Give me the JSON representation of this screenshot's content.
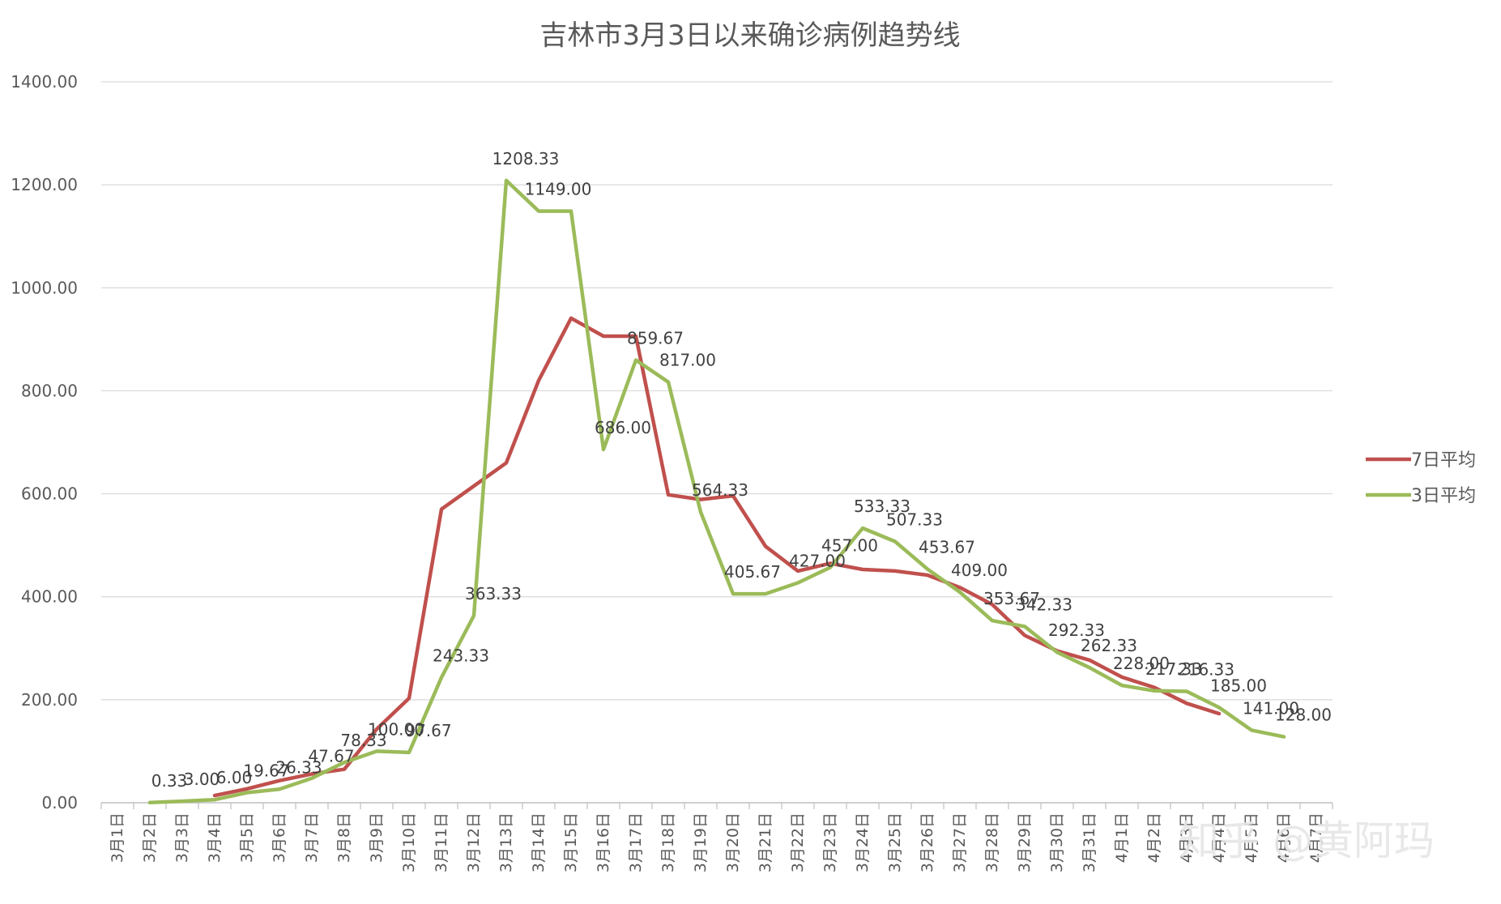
{
  "chart_data": {
    "type": "line",
    "title": "吉林市3月3日以来确诊病例趋势线",
    "xlabel": "",
    "ylabel": "",
    "ylim": [
      0,
      1400
    ],
    "yticks": [
      "0.00",
      "200.00",
      "400.00",
      "600.00",
      "800.00",
      "1000.00",
      "1200.00",
      "1400.00"
    ],
    "grid": true,
    "legend_position": "right",
    "categories": [
      "3月1日",
      "3月2日",
      "3月3日",
      "3月4日",
      "3月5日",
      "3月6日",
      "3月7日",
      "3月8日",
      "3月9日",
      "3月10日",
      "3月11日",
      "3月12日",
      "3月13日",
      "3月14日",
      "3月15日",
      "3月16日",
      "3月17日",
      "3月18日",
      "3月19日",
      "3月20日",
      "3月21日",
      "3月22日",
      "3月23日",
      "3月24日",
      "3月25日",
      "3月26日",
      "3月27日",
      "3月28日",
      "3月29日",
      "3月30日",
      "3月31日",
      "4月1日",
      "4月2日",
      "4月3日",
      "4月4日",
      "4月5日",
      "4月6日",
      "4月7日"
    ],
    "series": [
      {
        "name": "7日平均",
        "color": "#c0504d",
        "values": [
          null,
          null,
          null,
          14,
          27,
          43,
          56,
          65,
          143,
          203,
          570,
          615,
          660,
          820,
          941,
          906,
          906,
          598,
          589,
          596,
          498,
          450,
          465,
          453,
          450,
          442,
          418,
          385,
          325,
          295,
          277,
          244,
          224,
          193,
          173,
          null,
          null,
          null
        ],
        "labels": []
      },
      {
        "name": "3日平均",
        "color": "#9bbb59",
        "values": [
          null,
          0.33,
          3.0,
          6.0,
          19.67,
          26.33,
          47.67,
          78.33,
          100.0,
          97.67,
          243.33,
          363.33,
          1208.33,
          1149.0,
          1149.0,
          686.0,
          859.67,
          817.0,
          564.33,
          405.67,
          405.67,
          427.0,
          457.0,
          533.33,
          507.33,
          453.67,
          409.0,
          353.67,
          342.33,
          292.33,
          262.33,
          228.0,
          217.33,
          216.33,
          185.0,
          141.0,
          128.0,
          null
        ],
        "labels": [
          null,
          "0.33",
          "3.00",
          "6.00",
          "19.67",
          "26.33",
          "47.67",
          "78.33",
          "100.00",
          "97.67",
          "243.33",
          "363.33",
          "1208.33",
          "1149.00",
          null,
          "686.00",
          "859.67",
          "817.00",
          "564.33",
          "405.67",
          null,
          "427.00",
          "457.00",
          "533.33",
          "507.33",
          "453.67",
          "409.00",
          "353.67",
          "342.33",
          "292.33",
          "262.33",
          "228.00",
          "217.33",
          "216.33",
          "185.00",
          "141.00",
          "128.00",
          null
        ]
      }
    ]
  },
  "watermark": "知乎 @黄阿玛"
}
